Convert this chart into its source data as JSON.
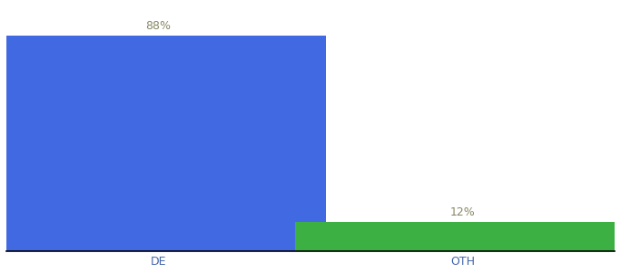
{
  "categories": [
    "DE",
    "OTH"
  ],
  "values": [
    88,
    12
  ],
  "bar_colors": [
    "#4169e1",
    "#3cb043"
  ],
  "value_labels": [
    "88%",
    "12%"
  ],
  "ylim": [
    0,
    100
  ],
  "background_color": "#ffffff",
  "label_fontsize": 9,
  "tick_fontsize": 9,
  "bar_width": 0.55,
  "x_positions": [
    0.25,
    0.75
  ]
}
